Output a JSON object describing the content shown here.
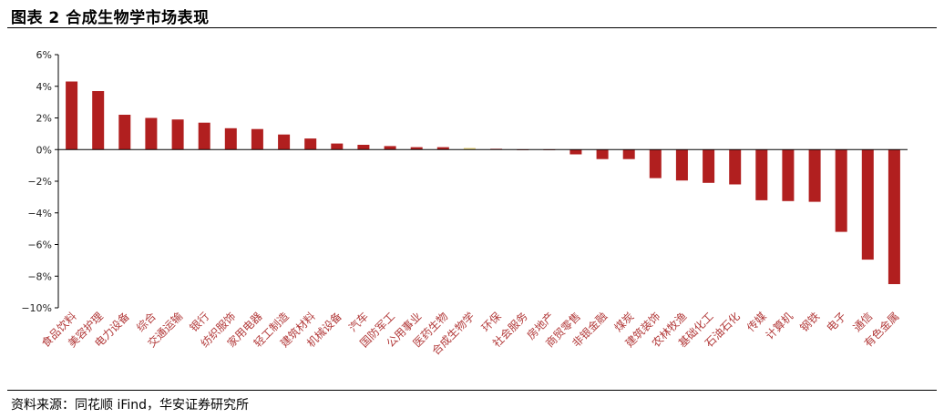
{
  "figure": {
    "title": "图表 2 合成生物学市场表现",
    "source": "资料来源：同花顺 iFind，华安证券研究所"
  },
  "chart_data": {
    "type": "bar",
    "categories": [
      "食品饮料",
      "美容护理",
      "电力设备",
      "综合",
      "交通运输",
      "银行",
      "纺织服饰",
      "家用电器",
      "轻工制造",
      "建筑材料",
      "机械设备",
      "汽车",
      "国防军工",
      "公用事业",
      "医药生物",
      "合成生物学",
      "环保",
      "社会服务",
      "房地产",
      "商贸零售",
      "非银金融",
      "煤炭",
      "建筑装饰",
      "农林牧渔",
      "基础化工",
      "石油石化",
      "传媒",
      "计算机",
      "钢铁",
      "电子",
      "通信",
      "有色金属"
    ],
    "values": [
      4.3,
      3.7,
      2.2,
      2.0,
      1.9,
      1.7,
      1.35,
      1.3,
      0.95,
      0.7,
      0.38,
      0.3,
      0.22,
      0.15,
      0.15,
      0.1,
      0.05,
      0.0,
      0.0,
      -0.3,
      -0.6,
      -0.6,
      -1.8,
      -1.95,
      -2.1,
      -2.2,
      -3.2,
      -3.25,
      -3.3,
      -5.2,
      -6.95,
      -8.5
    ],
    "unit": "%",
    "ylim": [
      -10,
      6
    ],
    "yticks": [
      "6%",
      "4%",
      "2%",
      "0%",
      "−2%",
      "−4%",
      "−6%",
      "−8%",
      "−10%"
    ],
    "ytick_values": [
      6,
      4,
      2,
      0,
      -2,
      -4,
      -6,
      -8,
      -10
    ],
    "colors": {
      "bar": "#b11f1f",
      "highlight": "#e6d27a",
      "axis": "#000000",
      "tick_label": "#222222",
      "category_label": "#b23a3a"
    },
    "highlight_category": "合成生物学",
    "grid": false,
    "legend": false
  }
}
